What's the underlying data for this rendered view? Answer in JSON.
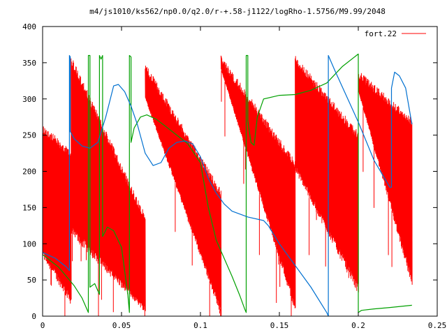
{
  "chart_data": {
    "type": "line",
    "title": "m4/js1010/ks562/np0.0/q2.0/r-+.58-j1122/logRho-1.5756/M9.99/2048",
    "xlabel": "",
    "ylabel": "",
    "xlim": [
      0,
      0.25
    ],
    "ylim": [
      0,
      400
    ],
    "x_ticks": [
      0,
      0.05,
      0.1,
      0.15,
      0.2,
      0.25
    ],
    "x_tick_labels": [
      "0",
      "0.05",
      "0.1",
      "0.15",
      "0.2",
      "0.25"
    ],
    "y_ticks": [
      0,
      50,
      100,
      150,
      200,
      250,
      300,
      350,
      400
    ],
    "y_tick_labels": [
      "0",
      "50",
      "100",
      "150",
      "200",
      "250",
      "300",
      "350",
      "400"
    ],
    "grid": false,
    "legend_position": "top-right",
    "colors": {
      "red": "#ff0000",
      "green": "#00a000",
      "blue": "#0070d0",
      "axis": "#000000"
    },
    "series": [
      {
        "name": "fort.22",
        "color": "#ff0000",
        "style": "dense-oscillation",
        "segments": [
          {
            "x": [
              0.0,
              0.018
            ],
            "upper": [
              265,
              230
            ],
            "lower": [
              80,
              15
            ]
          },
          {
            "x": [
              0.018,
              0.065
            ],
            "upper": [
              360,
              140
            ],
            "lower": [
              110,
              5
            ]
          },
          {
            "x": [
              0.065,
              0.113
            ],
            "upper": [
              350,
              175
            ],
            "lower": [
              300,
              0
            ]
          },
          {
            "x": [
              0.113,
              0.16
            ],
            "upper": [
              360,
              215
            ],
            "lower": [
              340,
              5
            ]
          },
          {
            "x": [
              0.16,
              0.2
            ],
            "upper": [
              360,
              255
            ],
            "lower": [
              200,
              30
            ]
          },
          {
            "x": [
              0.2,
              0.234
            ],
            "upper": [
              340,
              275
            ],
            "lower": [
              310,
              40
            ]
          }
        ]
      },
      {
        "name": "",
        "color": "#00a000",
        "points": [
          [
            0.0,
            85
          ],
          [
            0.01,
            68
          ],
          [
            0.02,
            42
          ],
          [
            0.025,
            25
          ],
          [
            0.029,
            5
          ],
          [
            0.029,
            360
          ],
          [
            0.03,
            360
          ],
          [
            0.03,
            40
          ],
          [
            0.033,
            45
          ],
          [
            0.036,
            30
          ],
          [
            0.036,
            360
          ],
          [
            0.037,
            355
          ],
          [
            0.038,
            360
          ],
          [
            0.038,
            110
          ],
          [
            0.041,
            123
          ],
          [
            0.045,
            118
          ],
          [
            0.05,
            95
          ],
          [
            0.054,
            30
          ],
          [
            0.055,
            5
          ],
          [
            0.055,
            360
          ],
          [
            0.056,
            358
          ],
          [
            0.056,
            240
          ],
          [
            0.058,
            260
          ],
          [
            0.062,
            275
          ],
          [
            0.066,
            278
          ],
          [
            0.072,
            272
          ],
          [
            0.078,
            262
          ],
          [
            0.085,
            250
          ],
          [
            0.092,
            238
          ],
          [
            0.1,
            212
          ],
          [
            0.105,
            150
          ],
          [
            0.11,
            105
          ],
          [
            0.115,
            80
          ],
          [
            0.12,
            55
          ],
          [
            0.125,
            28
          ],
          [
            0.128,
            10
          ],
          [
            0.129,
            5
          ],
          [
            0.129,
            360
          ],
          [
            0.13,
            360
          ],
          [
            0.13,
            270
          ],
          [
            0.132,
            240
          ],
          [
            0.134,
            236
          ],
          [
            0.136,
            275
          ],
          [
            0.14,
            300
          ],
          [
            0.15,
            305
          ],
          [
            0.16,
            306
          ],
          [
            0.17,
            312
          ],
          [
            0.18,
            322
          ],
          [
            0.19,
            345
          ],
          [
            0.2,
            362
          ],
          [
            0.2,
            5
          ],
          [
            0.202,
            8
          ],
          [
            0.21,
            10
          ],
          [
            0.22,
            12
          ],
          [
            0.234,
            15
          ]
        ]
      },
      {
        "name": "",
        "color": "#0070d0",
        "points": [
          [
            0.0,
            88
          ],
          [
            0.008,
            80
          ],
          [
            0.015,
            68
          ],
          [
            0.017,
            63
          ],
          [
            0.017,
            360
          ],
          [
            0.0175,
            358
          ],
          [
            0.0175,
            255
          ],
          [
            0.02,
            245
          ],
          [
            0.025,
            235
          ],
          [
            0.03,
            232
          ],
          [
            0.035,
            240
          ],
          [
            0.04,
            275
          ],
          [
            0.045,
            318
          ],
          [
            0.048,
            320
          ],
          [
            0.052,
            310
          ],
          [
            0.056,
            290
          ],
          [
            0.06,
            265
          ],
          [
            0.065,
            225
          ],
          [
            0.07,
            208
          ],
          [
            0.075,
            212
          ],
          [
            0.08,
            232
          ],
          [
            0.085,
            240
          ],
          [
            0.09,
            242
          ],
          [
            0.095,
            238
          ],
          [
            0.1,
            220
          ],
          [
            0.105,
            190
          ],
          [
            0.11,
            170
          ],
          [
            0.115,
            155
          ],
          [
            0.12,
            145
          ],
          [
            0.13,
            137
          ],
          [
            0.14,
            132
          ],
          [
            0.143,
            125
          ],
          [
            0.15,
            100
          ],
          [
            0.16,
            70
          ],
          [
            0.17,
            40
          ],
          [
            0.18,
            5
          ],
          [
            0.181,
            0
          ],
          [
            0.181,
            360
          ],
          [
            0.185,
            340
          ],
          [
            0.2,
            268
          ],
          [
            0.21,
            215
          ],
          [
            0.22,
            178
          ],
          [
            0.221,
            178
          ],
          [
            0.221,
            315
          ],
          [
            0.223,
            337
          ],
          [
            0.226,
            332
          ],
          [
            0.23,
            315
          ],
          [
            0.234,
            265
          ]
        ]
      }
    ]
  }
}
